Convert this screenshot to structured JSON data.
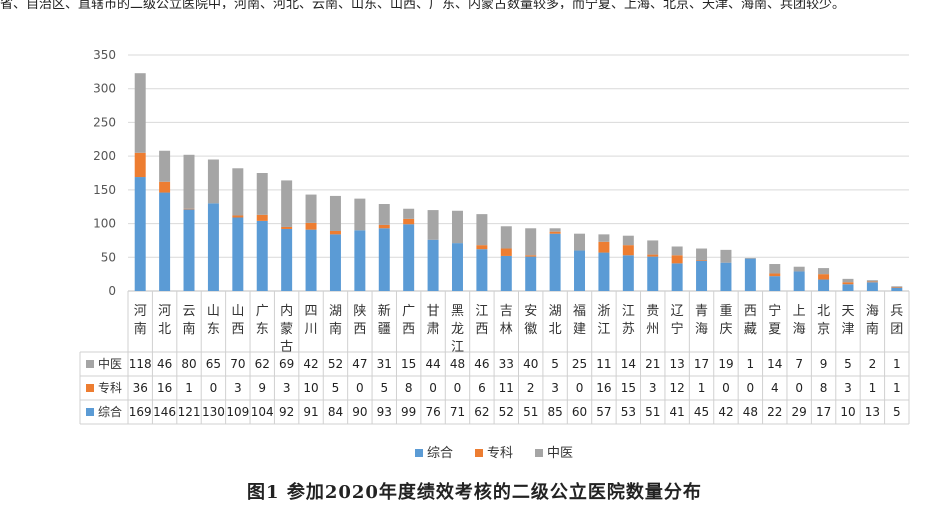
{
  "top_fragment": "省、自治区、直辖市的二级公立医院中，河南、河北、云南、山东、山西、广东、内蒙古数量较多，而宁夏、上海、北京、天津、海南、兵团较少。",
  "caption": "图1  参加2020年度绩效考核的二级公立医院数量分布",
  "colors": {
    "zonghe": "#5B9BD5",
    "zhuanke": "#ED7D31",
    "zhongyi": "#A5A5A5"
  },
  "chart_data": {
    "type": "bar",
    "stacked": true,
    "ylim": [
      0,
      350
    ],
    "yticks": [
      0,
      50,
      100,
      150,
      200,
      250,
      300,
      350
    ],
    "grid": true,
    "legend_position": "bottom",
    "categories": [
      "河南",
      "河北",
      "云南",
      "山东",
      "山西",
      "广东",
      "内蒙古",
      "四川",
      "湖南",
      "陕西",
      "新疆",
      "广西",
      "甘肃",
      "黑龙江",
      "江西",
      "吉林",
      "安徽",
      "湖北",
      "福建",
      "浙江",
      "江苏",
      "贵州",
      "辽宁",
      "青海",
      "重庆",
      "西藏",
      "宁夏",
      "上海",
      "北京",
      "天津",
      "海南",
      "兵团"
    ],
    "series": [
      {
        "name": "综合",
        "values": [
          169,
          146,
          121,
          130,
          109,
          104,
          92,
          91,
          84,
          90,
          93,
          99,
          76,
          71,
          62,
          52,
          51,
          85,
          60,
          57,
          53,
          51,
          41,
          45,
          42,
          48,
          22,
          29,
          17,
          10,
          13,
          5
        ]
      },
      {
        "name": "专科",
        "values": [
          36,
          16,
          1,
          0,
          3,
          9,
          3,
          10,
          5,
          0,
          5,
          8,
          0,
          0,
          6,
          11,
          2,
          3,
          0,
          16,
          15,
          3,
          12,
          1,
          0,
          0,
          4,
          0,
          8,
          3,
          1,
          1
        ]
      },
      {
        "name": "中医",
        "values": [
          118,
          46,
          80,
          65,
          70,
          62,
          69,
          42,
          52,
          47,
          31,
          15,
          44,
          48,
          46,
          33,
          40,
          5,
          25,
          11,
          14,
          21,
          13,
          17,
          19,
          1,
          14,
          7,
          9,
          5,
          2,
          1
        ]
      }
    ]
  }
}
